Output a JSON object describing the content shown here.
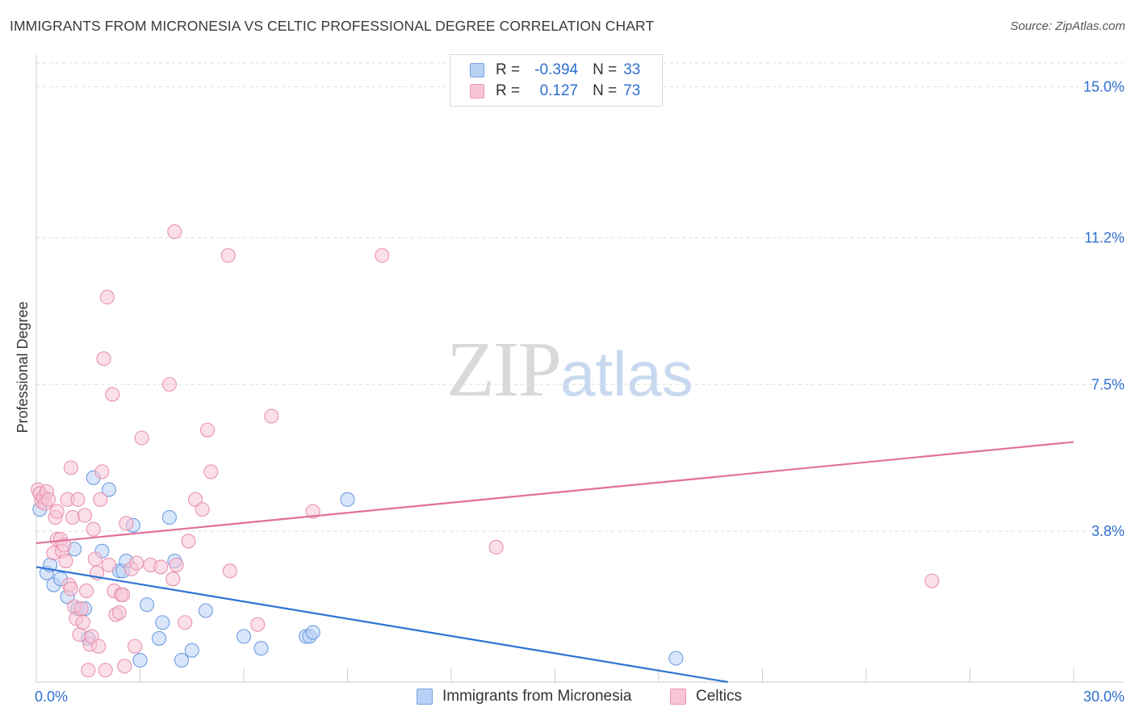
{
  "title": "IMMIGRANTS FROM MICRONESIA VS CELTIC PROFESSIONAL DEGREE CORRELATION CHART",
  "source": "Source: ZipAtlas.com",
  "watermark": {
    "zip": "ZIP",
    "atlas": "atlas"
  },
  "legend": {
    "r_label": "R =",
    "n_label": "N =",
    "series": [
      {
        "name": "Immigrants from Micronesia",
        "r": "-0.394",
        "n": "33"
      },
      {
        "name": "Celtics",
        "r": "0.127",
        "n": "73"
      }
    ]
  },
  "colors": {
    "blue_fill": "#b9d1f5",
    "blue_stroke": "#6f9de0",
    "blue_line": "#2f72d3",
    "pink_fill": "#f8c5d6",
    "pink_stroke": "#e893b1",
    "pink_line": "#e0709a",
    "tick_label": "#2f6fd0",
    "grid": "#dddddd"
  },
  "chart_data": {
    "type": "scatter",
    "title": "IMMIGRANTS FROM MICRONESIA VS CELTIC PROFESSIONAL DEGREE CORRELATION CHART",
    "xlabel": "",
    "ylabel": "Professional Degree",
    "xlim": [
      0,
      30
    ],
    "ylim": [
      0,
      15.6
    ],
    "x_ticks": [
      0,
      3,
      6,
      9,
      12,
      15,
      18,
      21,
      24,
      27,
      30
    ],
    "x_tick_labels": {
      "0": "0.0%",
      "30": "30.0%"
    },
    "y_ticks": [
      3.8,
      7.5,
      11.2,
      15.0
    ],
    "y_tick_labels": [
      "3.8%",
      "7.5%",
      "11.2%",
      "15.0%"
    ],
    "series": [
      {
        "name": "Immigrants from Micronesia",
        "color": "blue",
        "trend": {
          "x": [
            0,
            20
          ],
          "y": [
            2.9,
            0.0
          ]
        },
        "points": [
          [
            0.1,
            4.35
          ],
          [
            0.3,
            2.75
          ],
          [
            0.4,
            2.95
          ],
          [
            0.5,
            2.45
          ],
          [
            0.7,
            2.6
          ],
          [
            0.9,
            2.15
          ],
          [
            1.1,
            3.35
          ],
          [
            1.2,
            1.85
          ],
          [
            1.4,
            1.85
          ],
          [
            1.5,
            1.1
          ],
          [
            1.65,
            5.15
          ],
          [
            1.9,
            3.3
          ],
          [
            2.1,
            4.85
          ],
          [
            2.4,
            2.8
          ],
          [
            2.5,
            2.8
          ],
          [
            2.6,
            3.05
          ],
          [
            2.8,
            3.95
          ],
          [
            3.0,
            0.55
          ],
          [
            3.2,
            1.95
          ],
          [
            3.55,
            1.1
          ],
          [
            3.65,
            1.5
          ],
          [
            3.85,
            4.15
          ],
          [
            4.0,
            3.05
          ],
          [
            4.2,
            0.55
          ],
          [
            4.5,
            0.8
          ],
          [
            4.9,
            1.8
          ],
          [
            6.0,
            1.15
          ],
          [
            6.5,
            0.85
          ],
          [
            7.8,
            1.15
          ],
          [
            7.9,
            1.15
          ],
          [
            8.0,
            1.25
          ],
          [
            9.0,
            4.6
          ],
          [
            18.5,
            0.6
          ]
        ]
      },
      {
        "name": "Celtics",
        "color": "pink",
        "trend": {
          "x": [
            0,
            30
          ],
          "y": [
            3.5,
            6.05
          ]
        },
        "points": [
          [
            0.05,
            4.85
          ],
          [
            0.1,
            4.75
          ],
          [
            0.15,
            4.55
          ],
          [
            0.2,
            4.65
          ],
          [
            0.25,
            4.5
          ],
          [
            0.3,
            4.8
          ],
          [
            0.35,
            4.6
          ],
          [
            0.5,
            3.25
          ],
          [
            0.55,
            4.15
          ],
          [
            0.6,
            3.6
          ],
          [
            0.6,
            4.3
          ],
          [
            0.7,
            3.6
          ],
          [
            0.75,
            3.3
          ],
          [
            0.8,
            3.45
          ],
          [
            0.85,
            3.05
          ],
          [
            0.9,
            4.6
          ],
          [
            0.95,
            2.45
          ],
          [
            1.0,
            2.35
          ],
          [
            1.0,
            5.4
          ],
          [
            1.05,
            4.15
          ],
          [
            1.1,
            1.9
          ],
          [
            1.15,
            1.6
          ],
          [
            1.2,
            4.6
          ],
          [
            1.25,
            1.2
          ],
          [
            1.3,
            1.85
          ],
          [
            1.35,
            1.5
          ],
          [
            1.4,
            4.2
          ],
          [
            1.45,
            2.3
          ],
          [
            1.5,
            0.3
          ],
          [
            1.55,
            0.95
          ],
          [
            1.6,
            1.15
          ],
          [
            1.65,
            3.85
          ],
          [
            1.7,
            3.1
          ],
          [
            1.75,
            2.75
          ],
          [
            1.8,
            0.9
          ],
          [
            1.85,
            4.6
          ],
          [
            1.9,
            5.3
          ],
          [
            1.95,
            8.15
          ],
          [
            2.0,
            0.3
          ],
          [
            2.05,
            9.7
          ],
          [
            2.1,
            2.95
          ],
          [
            2.2,
            7.25
          ],
          [
            2.25,
            2.3
          ],
          [
            2.3,
            1.7
          ],
          [
            2.4,
            1.75
          ],
          [
            2.45,
            2.2
          ],
          [
            2.5,
            2.2
          ],
          [
            2.55,
            0.4
          ],
          [
            2.6,
            4.0
          ],
          [
            2.75,
            2.85
          ],
          [
            2.85,
            0.9
          ],
          [
            2.9,
            3.0
          ],
          [
            3.05,
            6.15
          ],
          [
            3.3,
            2.95
          ],
          [
            3.6,
            2.9
          ],
          [
            3.85,
            7.5
          ],
          [
            3.95,
            2.6
          ],
          [
            4.05,
            2.95
          ],
          [
            4.0,
            11.35
          ],
          [
            4.3,
            1.5
          ],
          [
            4.4,
            3.55
          ],
          [
            4.6,
            4.6
          ],
          [
            4.8,
            4.35
          ],
          [
            4.95,
            6.35
          ],
          [
            5.05,
            5.3
          ],
          [
            5.55,
            10.75
          ],
          [
            5.6,
            2.8
          ],
          [
            6.4,
            1.45
          ],
          [
            6.8,
            6.7
          ],
          [
            8.0,
            4.3
          ],
          [
            10.0,
            10.75
          ],
          [
            13.3,
            3.4
          ],
          [
            25.9,
            2.55
          ]
        ]
      }
    ]
  },
  "axis": {
    "x_left_label": "0.0%",
    "x_right_label": "30.0%",
    "y_label": "Professional Degree"
  }
}
